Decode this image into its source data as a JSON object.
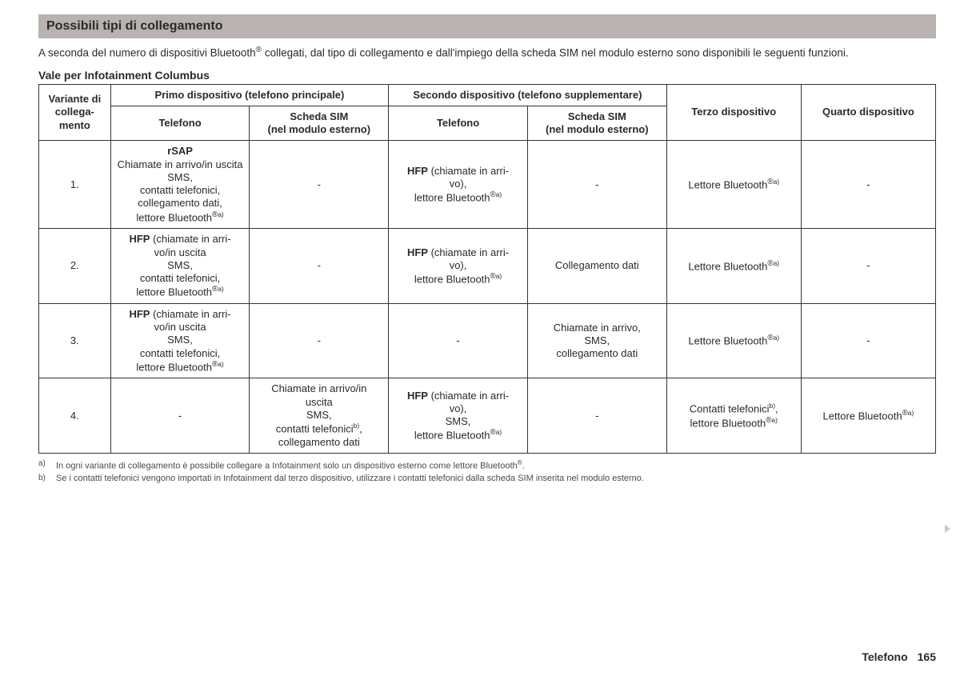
{
  "heading": "Possibili tipi di collegamento",
  "intro_pre": "A seconda del numero di dispositivi Bluetooth",
  "intro_post": " collegati, dal tipo di collegamento e dall'impiego della scheda SIM nel modulo esterno sono disponibili le seguenti funzioni.",
  "subheading": "Vale per Infotainment Columbus",
  "headers": {
    "variant_l1": "Variante di",
    "variant_l2": "collega-",
    "variant_l3": "mento",
    "first_device": "Primo dispositivo (telefono principale)",
    "second_device": "Secondo dispositivo (telefono supplementare)",
    "third_device": "Terzo dispositivo",
    "fourth_device": "Quarto dispositivo",
    "telefono": "Telefono",
    "scheda_sim_l1": "Scheda SIM",
    "scheda_sim_l2": "(nel modulo esterno)"
  },
  "rows": [
    {
      "n": "1.",
      "c1": "<span class=\"b\">rSAP</span><br>Chiamate in arrivo/in uscita<br>SMS,<br>contatti telefonici,<br>collegamento dati,<br>lettore Bluetooth<span class=\"reg\">®</span><span class=\"sup\">a)</span>",
      "c2": "-",
      "c3": "<span class=\"b\">HFP</span> (chiamate in arri-<br>vo),<br>lettore Bluetooth<span class=\"reg\">®</span><span class=\"sup\">a)</span>",
      "c4": "-",
      "c5": "Lettore Bluetooth<span class=\"reg\">®</span><span class=\"sup\">a)</span>",
      "c6": "-"
    },
    {
      "n": "2.",
      "c1": "<span class=\"b\">HFP</span> (chiamate in arri-<br>vo/in uscita<br>SMS,<br>contatti telefonici,<br>lettore Bluetooth<span class=\"reg\">®</span><span class=\"sup\">a)</span>",
      "c2": "-",
      "c3": "<span class=\"b\">HFP</span> (chiamate in arri-<br>vo),<br>lettore Bluetooth<span class=\"reg\">®</span><span class=\"sup\">a)</span>",
      "c4": "Collegamento dati",
      "c5": "Lettore Bluetooth<span class=\"reg\">®</span><span class=\"sup\">a)</span>",
      "c6": "-"
    },
    {
      "n": "3.",
      "c1": "<span class=\"b\">HFP</span> (chiamate in arri-<br>vo/in uscita<br>SMS,<br>contatti telefonici,<br>lettore Bluetooth<span class=\"reg\">®</span><span class=\"sup\">a)</span>",
      "c2": "-",
      "c3": "-",
      "c4": "Chiamate in arrivo,<br>SMS,<br>collegamento dati",
      "c5": "Lettore Bluetooth<span class=\"reg\">®</span><span class=\"sup\">a)</span>",
      "c6": "-"
    },
    {
      "n": "4.",
      "c1": "-",
      "c2": "Chiamate in arrivo/in<br>uscita<br>SMS,<br>contatti telefonici<span class=\"sup\">b)</span>,<br>collegamento dati",
      "c3": "<span class=\"b\">HFP</span> (chiamate in arri-<br>vo),<br>SMS,<br>lettore Bluetooth<span class=\"reg\">®</span><span class=\"sup\">a)</span>",
      "c4": "-",
      "c5": "Contatti telefonici<span class=\"sup\">b)</span>,<br>lettore Bluetooth<span class=\"reg\">®</span><span class=\"sup\">a)</span>",
      "c6": "Lettore Bluetooth<span class=\"reg\">®</span><span class=\"sup\">a)</span>"
    }
  ],
  "footnotes": [
    {
      "mark": "a)",
      "text": "In ogni variante di collegamento è possibile collegare a Infotainment solo un dispositivo esterno come lettore Bluetooth<span class=\"reg\">®</span>."
    },
    {
      "mark": "b)",
      "text": "Se i contatti telefonici vengono importati in Infotainment dal terzo dispositivo, utilizzare i contatti telefonici dalla scheda SIM inserita nel modulo esterno."
    }
  ],
  "footer_section": "Telefono",
  "footer_page": "165"
}
